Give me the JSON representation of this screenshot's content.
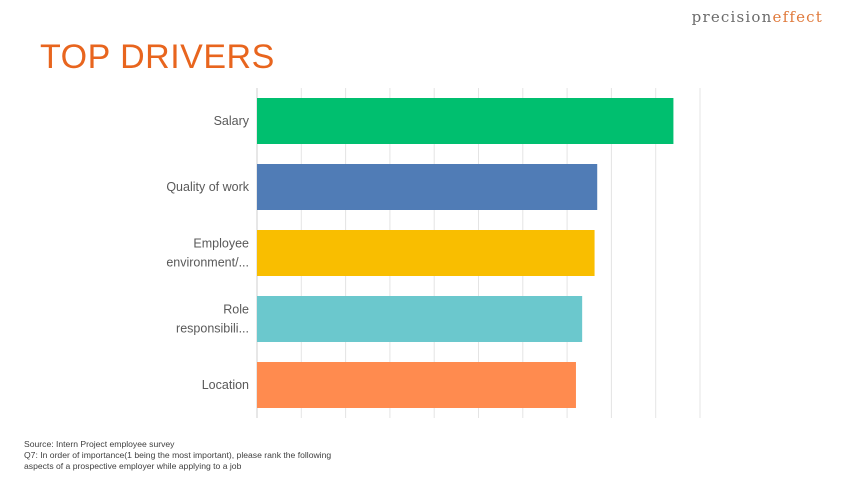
{
  "logo": {
    "word1": "precision",
    "word2": "effect"
  },
  "page_title": "TOP DRIVERS",
  "chart_data": {
    "type": "bar",
    "orientation": "horizontal",
    "title": "TOP DRIVERS",
    "categories": [
      [
        "Salary"
      ],
      [
        "Quality of work"
      ],
      [
        "Employee",
        "environment/..."
      ],
      [
        "Role",
        "responsibili..."
      ],
      [
        "Location"
      ]
    ],
    "values": [
      4.7,
      3.84,
      3.81,
      3.67,
      3.6
    ],
    "colors": [
      "#00bf6f",
      "#507cb6",
      "#f9be00",
      "#6bc8cd",
      "#ff8b4f"
    ],
    "xlim": [
      0,
      5
    ],
    "grid_step": 0.5,
    "grid": true,
    "xlabel": "",
    "ylabel": "",
    "tick_labels_shown": false
  },
  "footer": {
    "source": "Source: Intern Project employee survey",
    "question_line1": "Q7: In order of importance(1  being the most important),  please rank the following",
    "question_line2": "aspects of a prospective employer while applying to a job"
  }
}
